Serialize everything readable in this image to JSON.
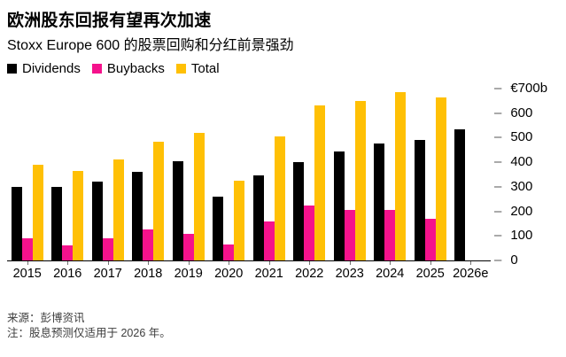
{
  "header": {
    "title": "欧洲股东回报有望再次加速",
    "subtitle": "Stoxx Europe 600 的股票回购和分红前景强劲"
  },
  "legend": {
    "items": [
      {
        "label": "Dividends",
        "color": "#000000"
      },
      {
        "label": "Buybacks",
        "color": "#f5128c"
      },
      {
        "label": "Total",
        "color": "#ffc005"
      }
    ]
  },
  "chart_data": {
    "type": "bar",
    "title": "欧洲股东回报有望再次加速",
    "subtitle": "Stoxx Europe 600 的股票回购和分红前景强劲",
    "categories": [
      "2015",
      "2016",
      "2017",
      "2018",
      "2019",
      "2020",
      "2021",
      "2022",
      "2023",
      "2024",
      "2025",
      "2026e"
    ],
    "series": [
      {
        "name": "Dividends",
        "color": "#000000",
        "values": [
          300,
          300,
          320,
          360,
          405,
          260,
          345,
          400,
          445,
          475,
          490,
          535
        ]
      },
      {
        "name": "Buybacks",
        "color": "#f5128c",
        "values": [
          90,
          60,
          90,
          125,
          110,
          65,
          160,
          225,
          205,
          205,
          170,
          null
        ]
      },
      {
        "name": "Total",
        "color": "#ffc005",
        "values": [
          390,
          365,
          410,
          485,
          520,
          325,
          505,
          630,
          650,
          685,
          665,
          null
        ]
      }
    ],
    "yaxis": {
      "max": 700,
      "ylim": [
        0,
        700
      ],
      "ticks": [
        {
          "label": "€700b",
          "value": 700
        },
        {
          "label": "600",
          "value": 600
        },
        {
          "label": "500",
          "value": 500
        },
        {
          "label": "400",
          "value": 400
        },
        {
          "label": "300",
          "value": 300
        },
        {
          "label": "200",
          "value": 200
        },
        {
          "label": "100",
          "value": 100
        },
        {
          "label": "0",
          "value": 0
        }
      ]
    },
    "legend_position": "top",
    "grid": false
  },
  "footer": {
    "source": "来源：彭博资讯",
    "note": "注：股息预测仅适用于 2026 年。"
  }
}
